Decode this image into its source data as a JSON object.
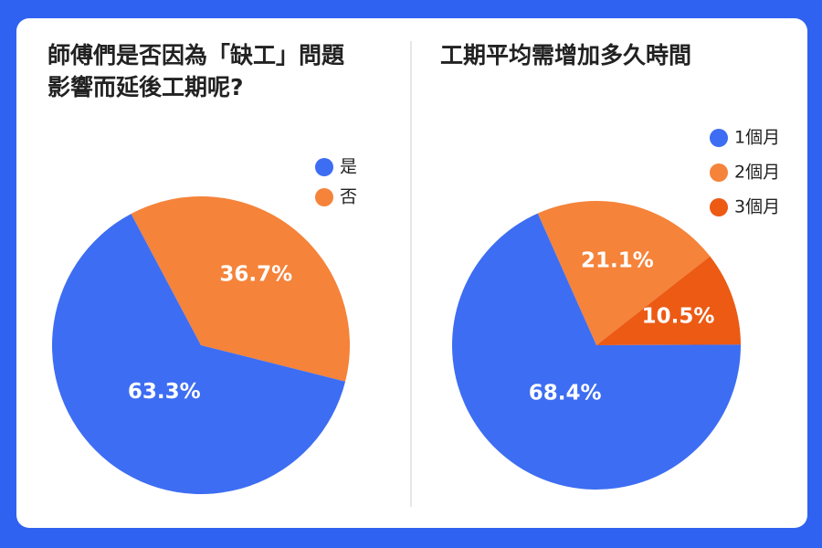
{
  "chart_data": [
    {
      "type": "pie",
      "title": [
        "師傅們是否因為「缺工」問題",
        "影響而延後工期呢?"
      ],
      "categories": [
        "是",
        "否"
      ],
      "values": [
        63.3,
        36.7
      ],
      "value_labels": [
        "63.3%",
        "36.7%"
      ],
      "colors": [
        "#3d6df2",
        "#f5833a"
      ]
    },
    {
      "type": "pie",
      "title": [
        "工期平均需增加多久時間"
      ],
      "categories": [
        "1個月",
        "2個月",
        "3個月"
      ],
      "values": [
        68.4,
        21.1,
        10.5
      ],
      "value_labels": [
        "68.4%",
        "21.1%",
        "10.5%"
      ],
      "colors": [
        "#3d6df2",
        "#f5833a",
        "#ec5a14"
      ]
    }
  ]
}
